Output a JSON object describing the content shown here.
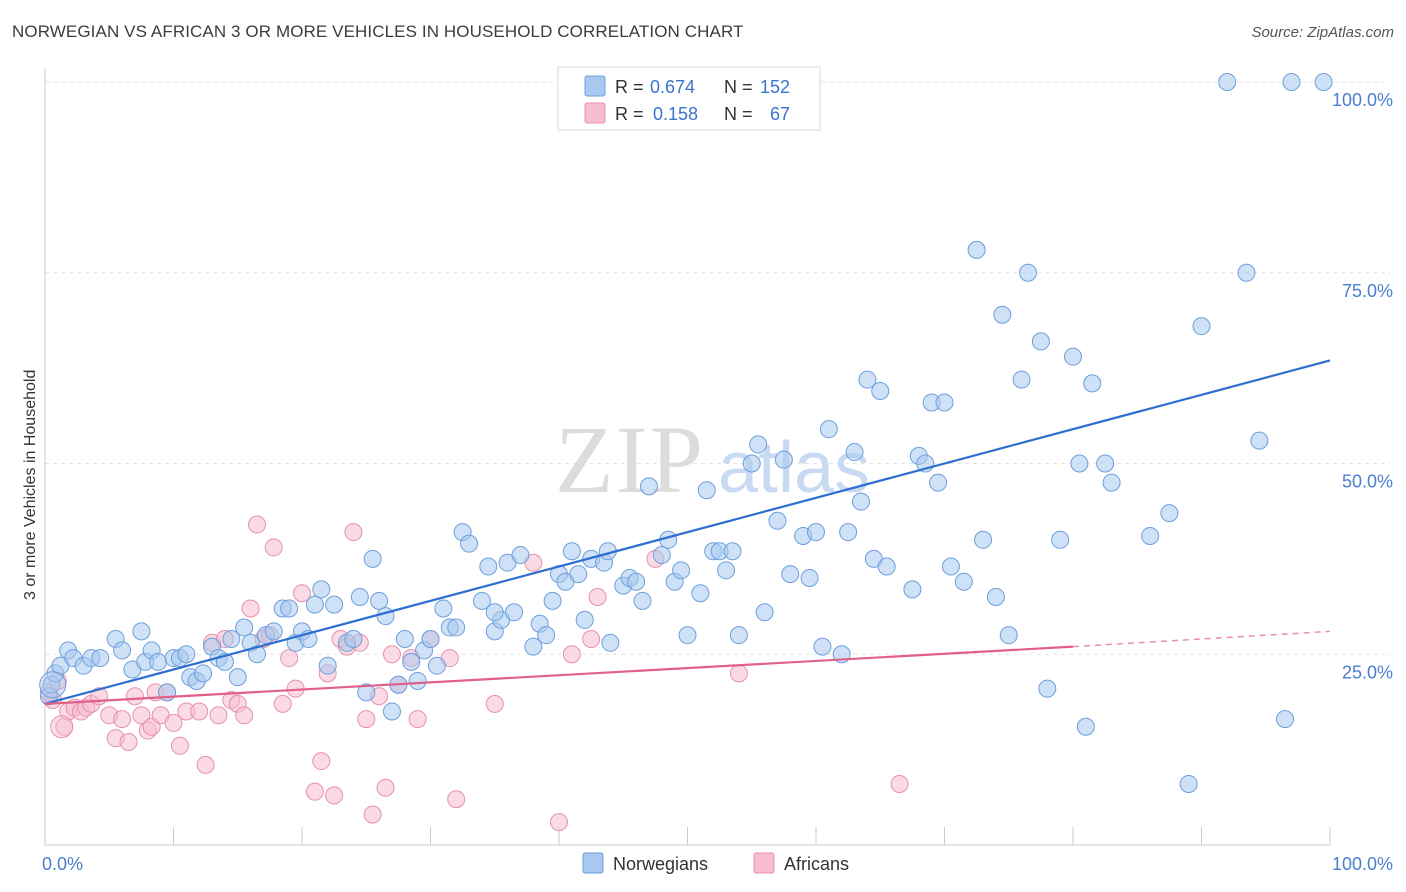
{
  "title": "NORWEGIAN VS AFRICAN 3 OR MORE VEHICLES IN HOUSEHOLD CORRELATION CHART",
  "source": "Source: ZipAtlas.com",
  "watermark": "ZIPatlas",
  "colors": {
    "blue_fill": "#a8c8ef",
    "blue_stroke": "#6d9fdc",
    "blue_line": "#2d6fd0",
    "pink_fill": "#f6bcd0",
    "pink_stroke": "#e890ad",
    "pink_line": "#e0608a",
    "tick_text": "#4a7fd0"
  },
  "chart_data": {
    "type": "scatter",
    "xlabel": "",
    "ylabel": "3 or more Vehicles in Household",
    "xlim": [
      0,
      100
    ],
    "ylim": [
      0,
      100
    ],
    "x_tick_labels": [
      "0.0%",
      "100.0%"
    ],
    "y_ticks": [
      25,
      50,
      75,
      100
    ],
    "y_tick_labels": [
      "25.0%",
      "50.0%",
      "75.0%",
      "100.0%"
    ],
    "grid": true,
    "legend_position": "top-center",
    "stats": [
      {
        "r_label": "R =",
        "r_value": "0.674",
        "n_label": "N =",
        "n_value": "152"
      },
      {
        "r_label": "R =",
        "r_value": "0.158",
        "n_label": "N =",
        "n_value": "67"
      }
    ],
    "series": [
      {
        "name": "Norwegians",
        "color": "#6d9fdc",
        "trend": {
          "x0": 0,
          "y0": 18.5,
          "x1": 100,
          "y1": 63.5
        },
        "points": [
          [
            0.3,
            19.5
          ],
          [
            0.5,
            21
          ],
          [
            0.8,
            22.5
          ],
          [
            1.2,
            23.5
          ],
          [
            1.8,
            25.5
          ],
          [
            2.2,
            24.5
          ],
          [
            3.0,
            23.5
          ],
          [
            3.6,
            24.5
          ],
          [
            4.3,
            24.5
          ],
          [
            5.5,
            27.0
          ],
          [
            6.0,
            25.5
          ],
          [
            6.8,
            23.0
          ],
          [
            7.5,
            28.0
          ],
          [
            7.8,
            24.0
          ],
          [
            8.3,
            25.5
          ],
          [
            8.8,
            24.0
          ],
          [
            9.5,
            20.0
          ],
          [
            10.0,
            24.5
          ],
          [
            10.5,
            24.5
          ],
          [
            11.0,
            25.0
          ],
          [
            11.3,
            22.0
          ],
          [
            11.8,
            21.5
          ],
          [
            12.3,
            22.5
          ],
          [
            13.0,
            26.0
          ],
          [
            13.5,
            24.5
          ],
          [
            14.0,
            24.0
          ],
          [
            14.5,
            27.0
          ],
          [
            15.0,
            22.0
          ],
          [
            15.5,
            28.5
          ],
          [
            16.0,
            26.5
          ],
          [
            16.5,
            25.0
          ],
          [
            17.2,
            27.5
          ],
          [
            17.8,
            28.0
          ],
          [
            18.5,
            31.0
          ],
          [
            19.0,
            31.0
          ],
          [
            19.5,
            26.5
          ],
          [
            20.0,
            28.0
          ],
          [
            20.5,
            27.0
          ],
          [
            21.0,
            31.5
          ],
          [
            21.5,
            33.5
          ],
          [
            22.0,
            23.5
          ],
          [
            22.5,
            31.5
          ],
          [
            23.5,
            26.5
          ],
          [
            24.0,
            27.0
          ],
          [
            24.5,
            32.5
          ],
          [
            25.0,
            20.0
          ],
          [
            25.5,
            37.5
          ],
          [
            26.0,
            32.0
          ],
          [
            26.5,
            30.0
          ],
          [
            27.0,
            17.5
          ],
          [
            27.5,
            21.0
          ],
          [
            28.0,
            27.0
          ],
          [
            28.5,
            24.0
          ],
          [
            29.0,
            21.5
          ],
          [
            29.5,
            25.5
          ],
          [
            30.0,
            27.0
          ],
          [
            30.5,
            23.5
          ],
          [
            31.0,
            31.0
          ],
          [
            31.5,
            28.5
          ],
          [
            32.0,
            28.5
          ],
          [
            32.5,
            41.0
          ],
          [
            33.0,
            39.5
          ],
          [
            34.0,
            32.0
          ],
          [
            34.5,
            36.5
          ],
          [
            35.0,
            28.0
          ],
          [
            35.5,
            29.5
          ],
          [
            35.0,
            30.5
          ],
          [
            36.0,
            37.0
          ],
          [
            36.5,
            30.5
          ],
          [
            37.0,
            38.0
          ],
          [
            38.0,
            26.0
          ],
          [
            38.5,
            29.0
          ],
          [
            39.0,
            27.5
          ],
          [
            39.5,
            32.0
          ],
          [
            40.0,
            35.5
          ],
          [
            40.5,
            34.5
          ],
          [
            41.0,
            38.5
          ],
          [
            41.5,
            35.5
          ],
          [
            42.0,
            29.5
          ],
          [
            42.5,
            37.5
          ],
          [
            43.5,
            37.0
          ],
          [
            43.8,
            38.5
          ],
          [
            44.0,
            26.5
          ],
          [
            45.0,
            34.0
          ],
          [
            45.5,
            35.0
          ],
          [
            46.0,
            34.5
          ],
          [
            46.5,
            32.0
          ],
          [
            47.0,
            47.0
          ],
          [
            48.0,
            38.0
          ],
          [
            48.5,
            40.0
          ],
          [
            49.0,
            34.5
          ],
          [
            49.5,
            36.0
          ],
          [
            50.0,
            27.5
          ],
          [
            51.0,
            33.0
          ],
          [
            51.5,
            46.5
          ],
          [
            52.0,
            38.5
          ],
          [
            52.5,
            38.5
          ],
          [
            53.0,
            36.0
          ],
          [
            53.5,
            38.5
          ],
          [
            54.0,
            27.5
          ],
          [
            55.0,
            50.0
          ],
          [
            55.5,
            52.5
          ],
          [
            56.0,
            30.5
          ],
          [
            57.0,
            42.5
          ],
          [
            57.5,
            50.5
          ],
          [
            58.0,
            35.5
          ],
          [
            59.0,
            40.5
          ],
          [
            59.5,
            35.0
          ],
          [
            60.0,
            41.0
          ],
          [
            60.5,
            26.0
          ],
          [
            61.0,
            54.5
          ],
          [
            62.0,
            25.0
          ],
          [
            62.5,
            41.0
          ],
          [
            63.0,
            51.5
          ],
          [
            63.5,
            45.0
          ],
          [
            64.0,
            61.0
          ],
          [
            64.5,
            37.5
          ],
          [
            65.0,
            59.5
          ],
          [
            65.5,
            36.5
          ],
          [
            67.5,
            33.5
          ],
          [
            68.0,
            51.0
          ],
          [
            68.5,
            50.0
          ],
          [
            69.0,
            58.0
          ],
          [
            69.5,
            47.5
          ],
          [
            70.0,
            58.0
          ],
          [
            70.5,
            36.5
          ],
          [
            71.5,
            34.5
          ],
          [
            72.5,
            78.0
          ],
          [
            73.0,
            40.0
          ],
          [
            74.0,
            32.5
          ],
          [
            74.5,
            69.5
          ],
          [
            75.0,
            27.5
          ],
          [
            76.0,
            61.0
          ],
          [
            76.5,
            75.0
          ],
          [
            77.5,
            66.0
          ],
          [
            78.0,
            20.5
          ],
          [
            79.0,
            40.0
          ],
          [
            80.0,
            64.0
          ],
          [
            80.5,
            50.0
          ],
          [
            81.0,
            15.5
          ],
          [
            81.5,
            60.5
          ],
          [
            82.5,
            50.0
          ],
          [
            83.0,
            47.5
          ],
          [
            86.0,
            40.5
          ],
          [
            87.5,
            43.5
          ],
          [
            89.0,
            8.0
          ],
          [
            90.0,
            68.0
          ],
          [
            92.0,
            100.0
          ],
          [
            93.5,
            75.0
          ],
          [
            94.5,
            53.0
          ],
          [
            96.5,
            16.5
          ],
          [
            97.0,
            100.0
          ],
          [
            99.5,
            100.0
          ]
        ]
      },
      {
        "name": "Africans",
        "color": "#e890ad",
        "trend": {
          "x0": 0,
          "y0": 18.5,
          "x1": 80,
          "y1": 26.0,
          "dash_to_x": 100,
          "dash_to_y": 28.0
        },
        "points": [
          [
            0.3,
            20.0
          ],
          [
            0.6,
            19.0
          ],
          [
            1.0,
            21.5
          ],
          [
            1.5,
            15.5
          ],
          [
            1.8,
            17.5
          ],
          [
            2.3,
            18.0
          ],
          [
            2.8,
            17.5
          ],
          [
            3.2,
            18.0
          ],
          [
            3.6,
            18.5
          ],
          [
            4.2,
            19.5
          ],
          [
            5.0,
            17.0
          ],
          [
            5.5,
            14.0
          ],
          [
            6.0,
            16.5
          ],
          [
            6.5,
            13.5
          ],
          [
            7.0,
            19.5
          ],
          [
            7.5,
            17.0
          ],
          [
            8.0,
            15.0
          ],
          [
            8.3,
            15.5
          ],
          [
            8.6,
            20.0
          ],
          [
            9.0,
            17.0
          ],
          [
            9.5,
            20.0
          ],
          [
            10.0,
            16.0
          ],
          [
            10.5,
            13.0
          ],
          [
            11.0,
            17.5
          ],
          [
            12.0,
            17.5
          ],
          [
            12.5,
            10.5
          ],
          [
            13.0,
            26.5
          ],
          [
            13.5,
            17.0
          ],
          [
            14.0,
            27.0
          ],
          [
            14.5,
            19.0
          ],
          [
            15.0,
            18.5
          ],
          [
            15.5,
            17.0
          ],
          [
            16.0,
            31.0
          ],
          [
            16.5,
            42.0
          ],
          [
            17.0,
            27.0
          ],
          [
            17.5,
            27.5
          ],
          [
            17.8,
            39.0
          ],
          [
            18.5,
            18.5
          ],
          [
            19.0,
            24.5
          ],
          [
            19.5,
            20.5
          ],
          [
            20.0,
            33.0
          ],
          [
            21.0,
            7.0
          ],
          [
            21.5,
            11.0
          ],
          [
            22.0,
            22.5
          ],
          [
            22.5,
            6.5
          ],
          [
            23.0,
            27.0
          ],
          [
            23.5,
            26.0
          ],
          [
            24.0,
            41.0
          ],
          [
            24.5,
            26.5
          ],
          [
            25.0,
            16.5
          ],
          [
            25.5,
            4.0
          ],
          [
            26.0,
            19.5
          ],
          [
            26.5,
            7.5
          ],
          [
            27.0,
            25.0
          ],
          [
            27.5,
            21.0
          ],
          [
            28.5,
            24.5
          ],
          [
            29.0,
            16.5
          ],
          [
            30.0,
            27.0
          ],
          [
            31.5,
            24.5
          ],
          [
            32.0,
            6.0
          ],
          [
            35.0,
            18.5
          ],
          [
            38.0,
            37.0
          ],
          [
            40.0,
            3.0
          ],
          [
            41.0,
            25.0
          ],
          [
            42.5,
            27.0
          ],
          [
            43.0,
            32.5
          ],
          [
            47.5,
            37.5
          ],
          [
            54.0,
            22.5
          ],
          [
            66.5,
            8.0
          ]
        ]
      }
    ]
  },
  "legend": {
    "items": [
      {
        "label": "Norwegians"
      },
      {
        "label": "Africans"
      }
    ]
  }
}
